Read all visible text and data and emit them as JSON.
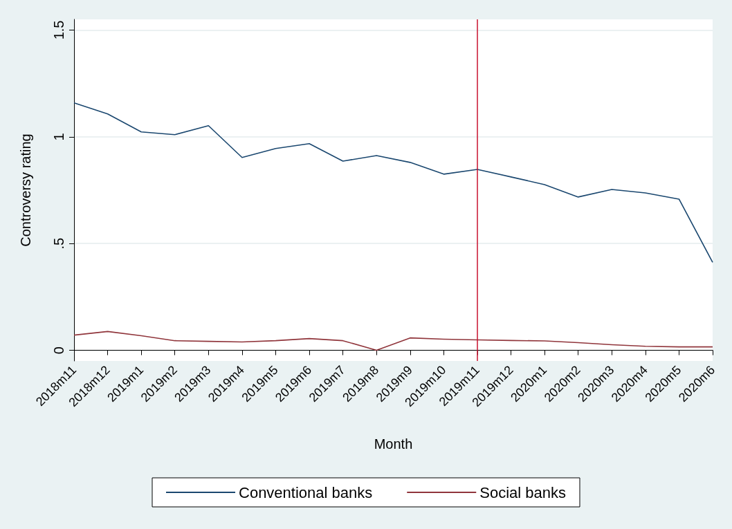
{
  "chart_data": {
    "type": "line",
    "xlabel": "Month",
    "ylabel": "Controversy rating",
    "categories": [
      "2018m11",
      "2018m12",
      "2019m1",
      "2019m2",
      "2019m3",
      "2019m4",
      "2019m5",
      "2019m6",
      "2019m7",
      "2019m8",
      "2019m9",
      "2019m10",
      "2019m11",
      "2019m12",
      "2020m1",
      "2020m2",
      "2020m3",
      "2020m4",
      "2020m5",
      "2020m6"
    ],
    "series": [
      {
        "name": "Conventional banks",
        "color": "#1a476f",
        "values": [
          1.159,
          1.107,
          1.023,
          1.01,
          1.052,
          0.903,
          0.945,
          0.968,
          0.886,
          0.912,
          0.88,
          0.825,
          0.847,
          0.812,
          0.776,
          0.718,
          0.753,
          0.737,
          0.708,
          0.412
        ]
      },
      {
        "name": "Social banks",
        "color": "#90353b",
        "values": [
          0.071,
          0.088,
          0.068,
          0.045,
          0.042,
          0.039,
          0.045,
          0.055,
          0.045,
          0.0,
          0.058,
          0.052,
          0.049,
          0.046,
          0.044,
          0.036,
          0.026,
          0.019,
          0.016,
          0.016
        ]
      }
    ],
    "ylim": [
      -0.05,
      1.55
    ],
    "yticks": [
      0,
      {
        "value": 0.5,
        "label": ".5"
      },
      1,
      1.5
    ],
    "ref_lines": [
      {
        "axis": "x",
        "value": "2019m11",
        "color": "#c8102e"
      }
    ],
    "grid": "y",
    "legend": "bottom",
    "marker": "none",
    "line_style": "solid"
  }
}
